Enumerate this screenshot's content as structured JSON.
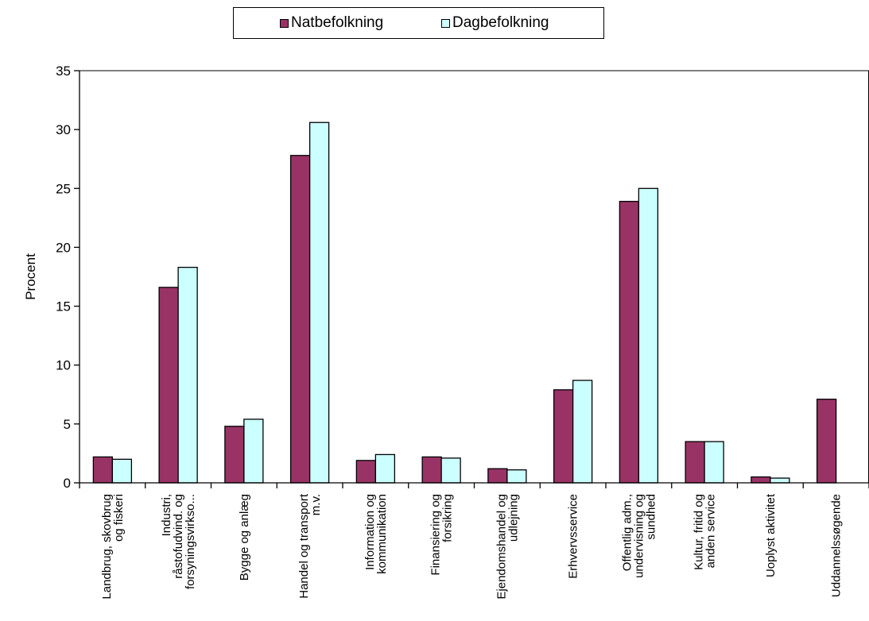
{
  "chart_data": {
    "type": "bar",
    "title": "",
    "xlabel": "",
    "ylabel": "Procent",
    "ylim": [
      0,
      35
    ],
    "yticks": [
      0,
      5,
      10,
      15,
      20,
      25,
      30,
      35
    ],
    "grid": false,
    "legend_position": "top-center",
    "categories": [
      [
        "Landbrug, skovbrug",
        "og fiskeri"
      ],
      [
        "Industri,",
        "råstofudvind. og",
        "forsyningsvirkso..."
      ],
      [
        "Bygge og anlæg"
      ],
      [
        "Handel og transport",
        "m.v."
      ],
      [
        "Information og",
        "kommunikation"
      ],
      [
        "Finansiering og",
        "forsikring"
      ],
      [
        "Ejendomshandel og",
        "udlejning"
      ],
      [
        "Erhvervsservice"
      ],
      [
        "Offentlig adm.,",
        "undervisning og",
        "sundhed"
      ],
      [
        "Kultur, fritid og",
        "anden service"
      ],
      [
        "Uoplyst aktivitet"
      ],
      [
        "Uddannelssøgende"
      ]
    ],
    "series": [
      {
        "name": "Natbefolkning",
        "color": "#993366",
        "values": [
          2.2,
          16.6,
          4.8,
          27.8,
          1.9,
          2.2,
          1.2,
          7.9,
          23.9,
          3.5,
          0.5,
          7.1
        ]
      },
      {
        "name": "Dagbefolkning",
        "color": "#CCFFFF",
        "values": [
          2.0,
          18.3,
          5.4,
          30.6,
          2.4,
          2.1,
          1.1,
          8.7,
          25.0,
          3.5,
          0.4,
          null
        ]
      }
    ]
  }
}
